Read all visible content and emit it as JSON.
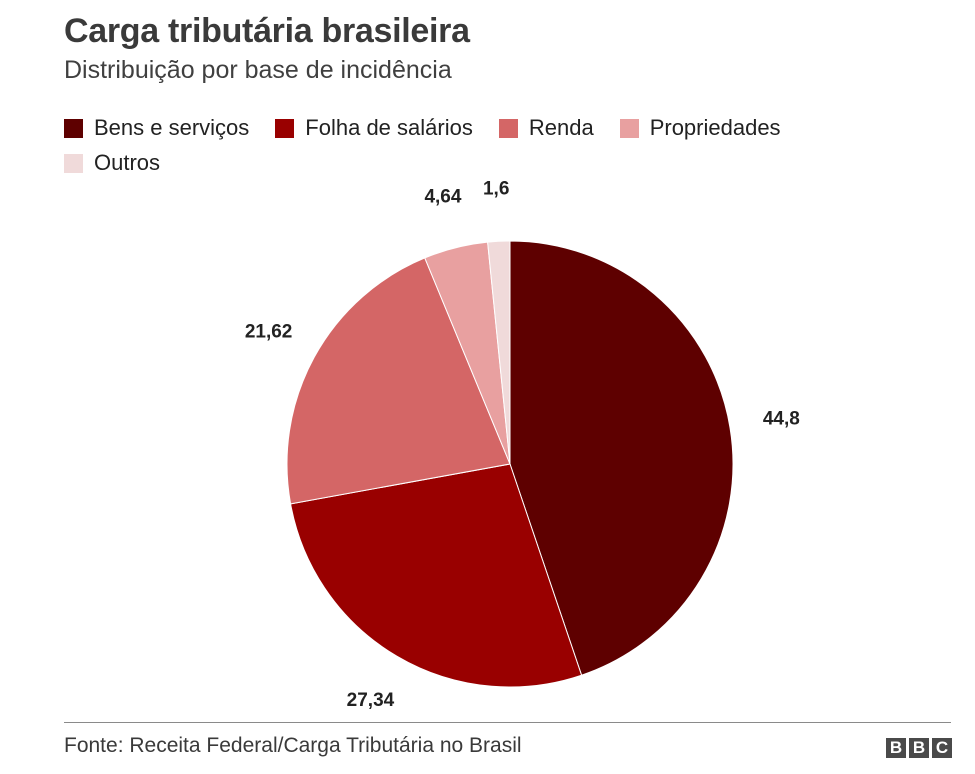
{
  "chart_data": {
    "type": "pie",
    "title": "Carga tributária brasileira",
    "subtitle": "Distribuição por base de incidência",
    "slices": [
      {
        "label": "Bens e serviços",
        "value": 44.8,
        "display": "44,8",
        "color": "#5e0000"
      },
      {
        "label": "Folha de salários",
        "value": 27.34,
        "display": "27,34",
        "color": "#990000"
      },
      {
        "label": "Renda",
        "value": 21.62,
        "display": "21,62",
        "color": "#d46666"
      },
      {
        "label": "Propriedades",
        "value": 4.64,
        "display": "4,64",
        "color": "#e8a0a0"
      },
      {
        "label": "Outros",
        "value": 1.6,
        "display": "1,6",
        "color": "#f0dada"
      }
    ],
    "legend_position": "top-left"
  },
  "footer": {
    "source": "Fonte: Receita Federal/Carga Tributária no Brasil",
    "logo_letters": [
      "B",
      "B",
      "C"
    ]
  }
}
